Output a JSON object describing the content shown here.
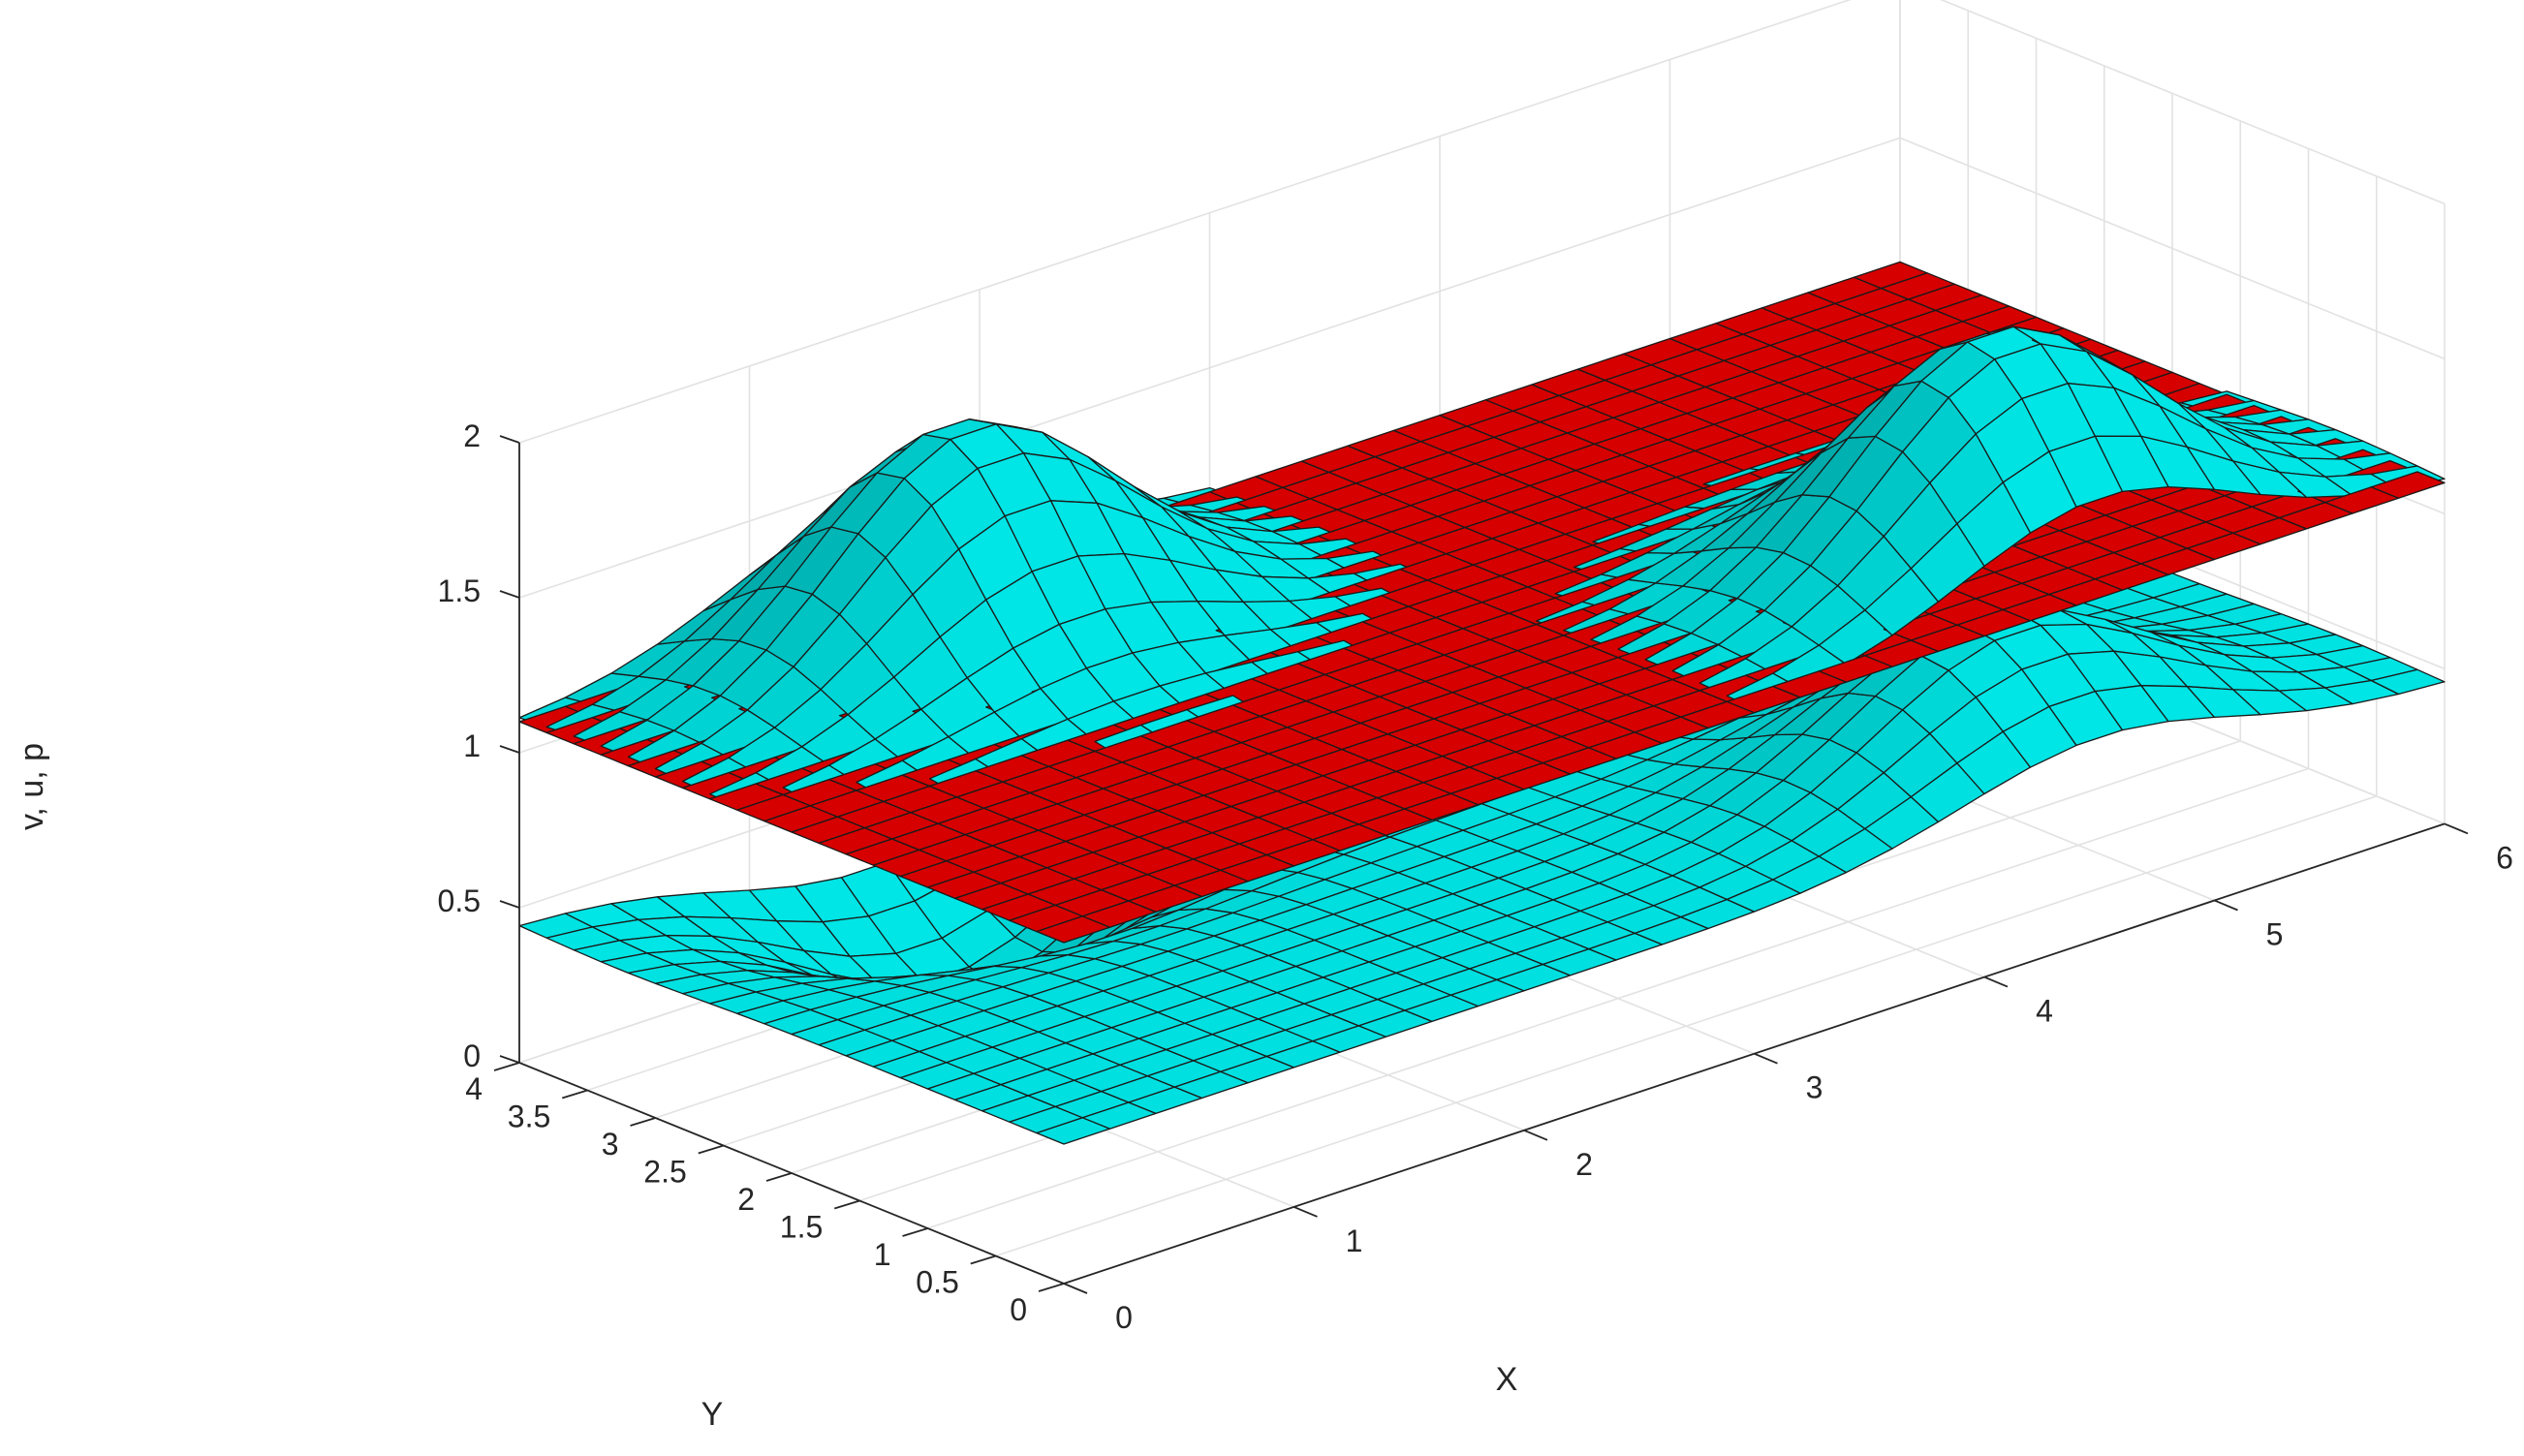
{
  "chart_data": {
    "type": "surface",
    "xlabel": "X",
    "ylabel": "Y",
    "zlabel": "v, u, p",
    "xlim": [
      0,
      6
    ],
    "ylim": [
      0,
      4
    ],
    "zlim": [
      0,
      2
    ],
    "grid": true,
    "xticks": [
      "0",
      "1",
      "2",
      "3",
      "4",
      "5",
      "6"
    ],
    "yticks": [
      "0",
      "0.5",
      "1",
      "1.5",
      "2",
      "2.5",
      "3",
      "3.5",
      "4"
    ],
    "zticks": [
      "0",
      "0.5",
      "1",
      "1.5",
      "2"
    ],
    "mesh": {
      "nx": 31,
      "ny": 21
    },
    "series": [
      {
        "surface": "lower",
        "color": "#00e5e5",
        "base_level": 0.45,
        "bumps": [
          {
            "x": 1.5,
            "y": 3.25,
            "amplitude": -0.45
          },
          {
            "x": 4.5,
            "y": 0.75,
            "amplitude": 0.45
          }
        ]
      },
      {
        "surface": "flat",
        "color": "#e60000",
        "level": 1.1
      },
      {
        "surface": "upper",
        "color": "#00e5e5",
        "base_level": 1.1,
        "bumps": [
          {
            "x": 1.5,
            "y": 3.25,
            "amplitude": 0.72
          },
          {
            "x": 4.5,
            "y": 0.75,
            "amplitude": 0.72
          }
        ]
      }
    ]
  }
}
